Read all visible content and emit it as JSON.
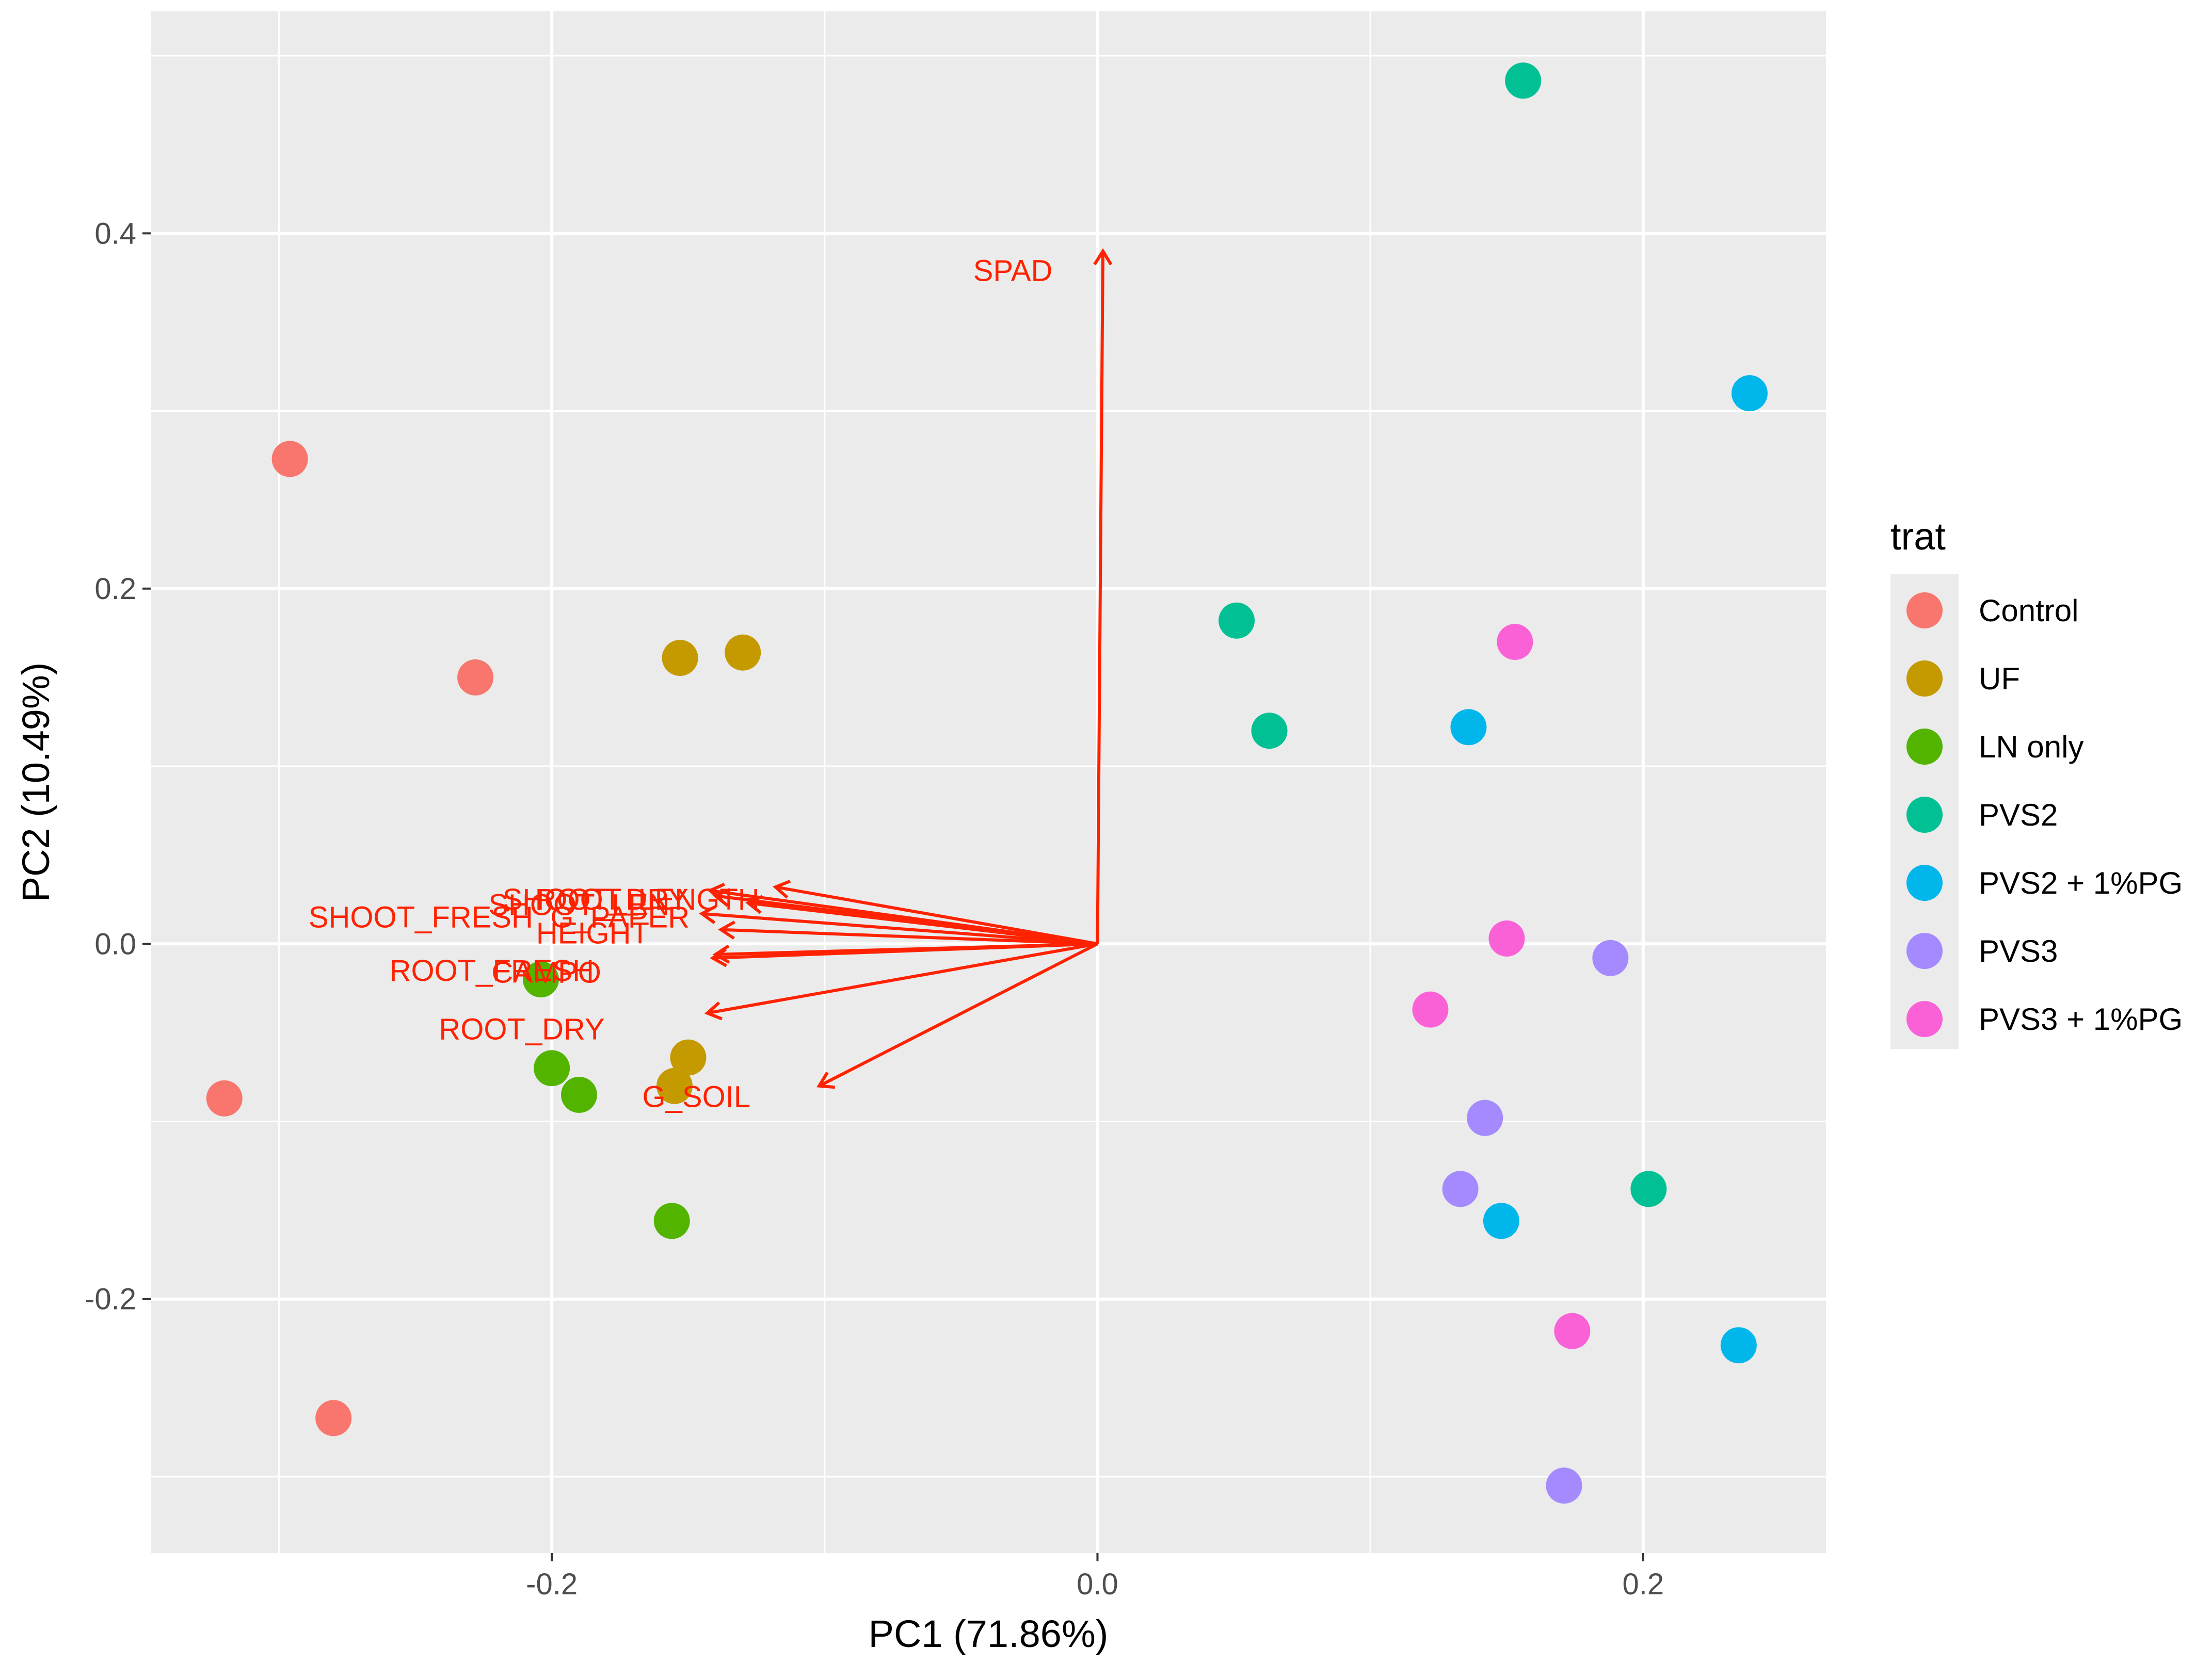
{
  "chart_data": {
    "type": "scatter",
    "xlabel": "PC1 (71.86%)",
    "ylabel": "PC2 (10.49%)",
    "xlim": [
      -0.347,
      0.267
    ],
    "ylim": [
      -0.343,
      0.525
    ],
    "x_ticks": [
      -0.2,
      0.0,
      0.2
    ],
    "x_tick_labels": [
      "-0.2",
      "0.0",
      "0.2"
    ],
    "y_ticks": [
      -0.2,
      0.0,
      0.2,
      0.4
    ],
    "y_tick_labels": [
      "-0.2",
      "0.0",
      "0.2",
      "0.4"
    ],
    "grid": true,
    "legend": {
      "title": "trat",
      "placement": "right"
    },
    "series": [
      {
        "name": "Control",
        "color": "#F8766D",
        "points": [
          [
            -0.296,
            0.273
          ],
          [
            -0.228,
            0.15
          ],
          [
            -0.32,
            -0.087
          ],
          [
            -0.28,
            -0.267
          ]
        ]
      },
      {
        "name": "UF",
        "color": "#C49A00",
        "points": [
          [
            -0.153,
            0.161
          ],
          [
            -0.13,
            0.164
          ],
          [
            -0.15,
            -0.064
          ],
          [
            -0.155,
            -0.08
          ]
        ]
      },
      {
        "name": "LN only",
        "color": "#53B400",
        "points": [
          [
            -0.204,
            -0.02
          ],
          [
            -0.2,
            -0.07
          ],
          [
            -0.19,
            -0.085
          ],
          [
            -0.156,
            -0.156
          ]
        ]
      },
      {
        "name": "PVS2",
        "color": "#00C094",
        "points": [
          [
            0.156,
            0.486
          ],
          [
            0.051,
            0.182
          ],
          [
            0.063,
            0.12
          ],
          [
            0.202,
            -0.138
          ]
        ]
      },
      {
        "name": "PVS2 + 1%PG",
        "color": "#00B6EB",
        "points": [
          [
            0.239,
            0.31
          ],
          [
            0.136,
            0.122
          ],
          [
            0.148,
            -0.156
          ],
          [
            0.235,
            -0.226
          ]
        ]
      },
      {
        "name": "PVS3",
        "color": "#A58AFF",
        "points": [
          [
            0.188,
            -0.008
          ],
          [
            0.142,
            -0.098
          ],
          [
            0.133,
            -0.138
          ],
          [
            0.171,
            -0.305
          ]
        ]
      },
      {
        "name": "PVS3 + 1%PG",
        "color": "#FB61D7",
        "points": [
          [
            0.153,
            0.17
          ],
          [
            0.15,
            0.003
          ],
          [
            0.122,
            -0.037
          ],
          [
            0.174,
            -0.218
          ]
        ]
      }
    ],
    "loadings": {
      "color": "#FF2200",
      "vectors": [
        {
          "label": "SPAD",
          "x": 0.002,
          "y": 0.39,
          "lx": -0.031,
          "ly": 0.379
        },
        {
          "label": "SHOOT_DRY",
          "x": -0.142,
          "y": 0.03,
          "lx": -0.184,
          "ly": 0.025
        },
        {
          "label": "ROOT_LENGTH",
          "x": -0.14,
          "y": 0.027,
          "lx": -0.165,
          "ly": 0.025
        },
        {
          "label": "SHOOT_LEN",
          "x": -0.128,
          "y": 0.023,
          "lx": -0.19,
          "ly": 0.022
        },
        {
          "label": "G_PAPER",
          "x": -0.118,
          "y": 0.032,
          "lx": -0.175,
          "ly": 0.015
        },
        {
          "label": "SHOOT_FRESH",
          "x": -0.145,
          "y": 0.017,
          "lx": -0.248,
          "ly": 0.015
        },
        {
          "label": "HEIGHT",
          "x": -0.138,
          "y": 0.008,
          "lx": -0.185,
          "ly": 0.006
        },
        {
          "label": "ROOT_FRESH",
          "x": -0.14,
          "y": -0.006,
          "lx": -0.222,
          "ly": -0.015
        },
        {
          "label": "CAMPO",
          "x": -0.141,
          "y": -0.008,
          "lx": -0.202,
          "ly": -0.016
        },
        {
          "label": "ROOT_DRY",
          "x": -0.143,
          "y": -0.039,
          "lx": -0.211,
          "ly": -0.048
        },
        {
          "label": "G_SOIL",
          "x": -0.102,
          "y": -0.08,
          "lx": -0.147,
          "ly": -0.086
        }
      ]
    }
  }
}
